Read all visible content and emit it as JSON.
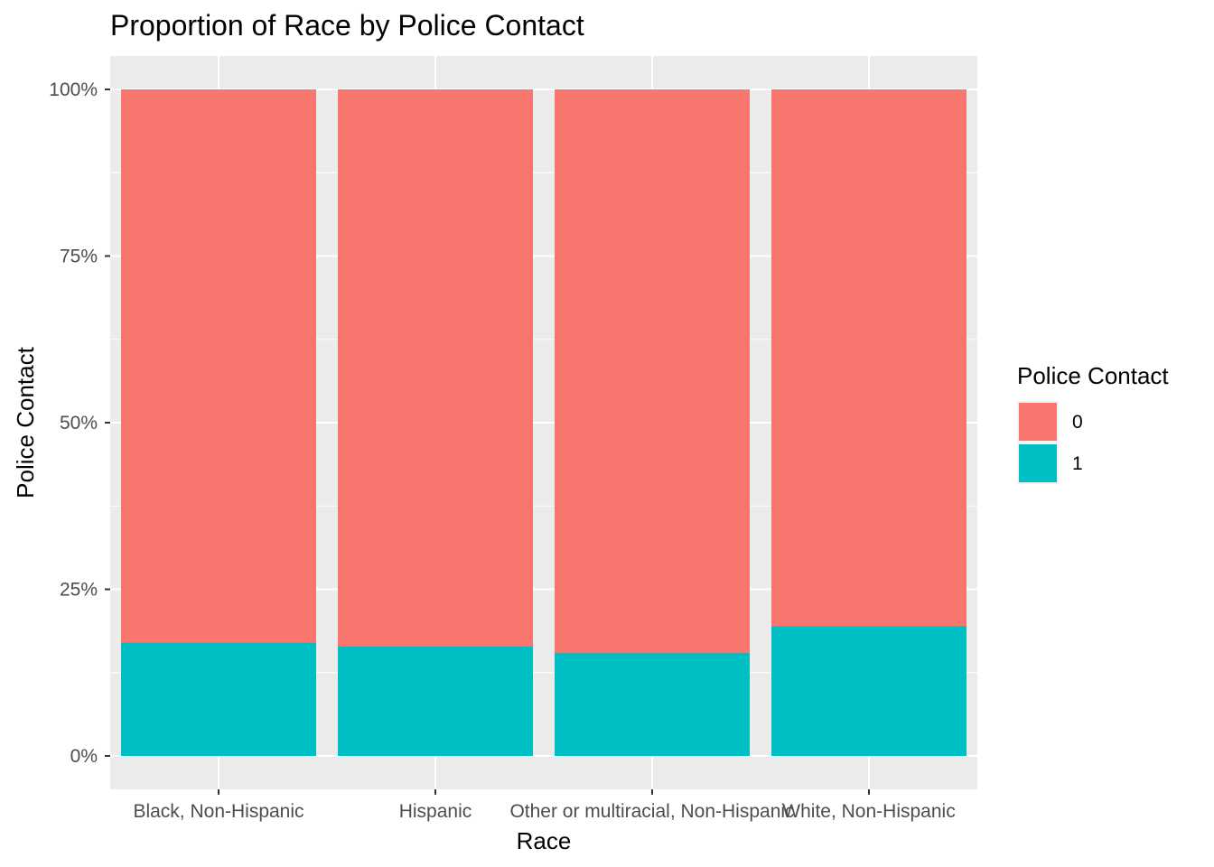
{
  "chart_data": {
    "type": "bar",
    "stacked": true,
    "title": "Proportion of Race by Police Contact",
    "xlabel": "Race",
    "ylabel": "Police Contact",
    "categories": [
      "Black, Non-Hispanic",
      "Hispanic",
      "Other or multiracial, Non-Hispanic",
      "White, Non-Hispanic"
    ],
    "series": [
      {
        "name": "0",
        "values": [
          0.83,
          0.835,
          0.845,
          0.805
        ]
      },
      {
        "name": "1",
        "values": [
          0.17,
          0.165,
          0.155,
          0.195
        ]
      }
    ],
    "ylim": [
      0,
      1
    ],
    "y_ticks": [
      0,
      0.25,
      0.5,
      0.75,
      1
    ],
    "y_tick_labels": [
      "0%",
      "25%",
      "50%",
      "75%",
      "100%"
    ],
    "legend": {
      "title": "Police Contact",
      "position": "right"
    },
    "grid": true,
    "colors": {
      "panel_bg": "#ebebeb",
      "gridline": "#ffffff",
      "series_0": "#f8766d",
      "series_1": "#00bfc4"
    }
  }
}
